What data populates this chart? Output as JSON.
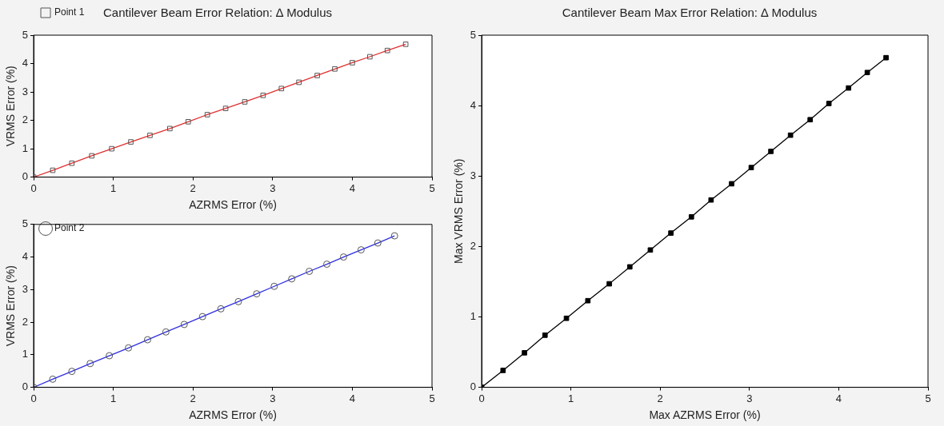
{
  "chart_data": [
    {
      "type": "line",
      "title": "Cantilever Beam Error Relation: ∆ Modulus",
      "xlabel": "AZRMS Error (%)",
      "ylabel": "VRMS Error (%)",
      "xlim": [
        0,
        5
      ],
      "ylim": [
        0,
        5
      ],
      "xticks": [
        0,
        1,
        2,
        3,
        4,
        5
      ],
      "yticks": [
        0,
        1,
        2,
        3,
        4,
        5
      ],
      "grid": false,
      "legend": "top left",
      "marker": "square",
      "series": [
        {
          "name": "Point 1",
          "color": "#e03030",
          "x": [
            0,
            0.24,
            0.48,
            0.73,
            0.98,
            1.22,
            1.46,
            1.71,
            1.94,
            2.18,
            2.41,
            2.65,
            2.88,
            3.11,
            3.33,
            3.56,
            3.78,
            4.0,
            4.22,
            4.44,
            4.67
          ],
          "values": [
            0,
            0.24,
            0.49,
            0.75,
            1.0,
            1.24,
            1.47,
            1.71,
            1.95,
            2.2,
            2.42,
            2.65,
            2.88,
            3.12,
            3.34,
            3.58,
            3.81,
            4.03,
            4.24,
            4.46,
            4.68
          ]
        }
      ]
    },
    {
      "type": "line",
      "xlabel": "AZRMS Error (%)",
      "ylabel": "VRMS Error (%)",
      "xlim": [
        0,
        5
      ],
      "ylim": [
        0,
        5
      ],
      "xticks": [
        0,
        1,
        2,
        3,
        4,
        5
      ],
      "yticks": [
        0,
        1,
        2,
        3,
        4,
        5
      ],
      "grid": false,
      "legend": "top left",
      "marker": "circle",
      "series": [
        {
          "name": "Point 2",
          "color": "#3030e0",
          "x": [
            0,
            0.24,
            0.48,
            0.71,
            0.95,
            1.19,
            1.43,
            1.66,
            1.89,
            2.12,
            2.35,
            2.57,
            2.8,
            3.02,
            3.24,
            3.46,
            3.68,
            3.89,
            4.11,
            4.32,
            4.53
          ],
          "values": [
            0,
            0.25,
            0.49,
            0.73,
            0.97,
            1.21,
            1.46,
            1.7,
            1.93,
            2.17,
            2.41,
            2.63,
            2.87,
            3.1,
            3.33,
            3.56,
            3.78,
            4.0,
            4.22,
            4.43,
            4.65
          ]
        }
      ]
    },
    {
      "type": "line",
      "title": "Cantilever Beam Max Error Relation: ∆ Modulus",
      "xlabel": "Max AZRMS Error (%)",
      "ylabel": "Max VRMS Error (%)",
      "xlim": [
        0,
        5
      ],
      "ylim": [
        0,
        5
      ],
      "xticks": [
        0,
        1,
        2,
        3,
        4,
        5
      ],
      "yticks": [
        0,
        1,
        2,
        3,
        4,
        5
      ],
      "grid": false,
      "marker": "square",
      "series": [
        {
          "color": "#000000",
          "x": [
            0,
            0.24,
            0.48,
            0.71,
            0.95,
            1.19,
            1.43,
            1.66,
            1.89,
            2.12,
            2.35,
            2.57,
            2.8,
            3.02,
            3.24,
            3.46,
            3.68,
            3.89,
            4.11,
            4.32,
            4.53
          ],
          "values": [
            0,
            0.24,
            0.49,
            0.74,
            0.98,
            1.23,
            1.47,
            1.71,
            1.95,
            2.19,
            2.42,
            2.66,
            2.89,
            3.12,
            3.35,
            3.58,
            3.8,
            4.03,
            4.25,
            4.47,
            4.68
          ]
        }
      ]
    }
  ]
}
